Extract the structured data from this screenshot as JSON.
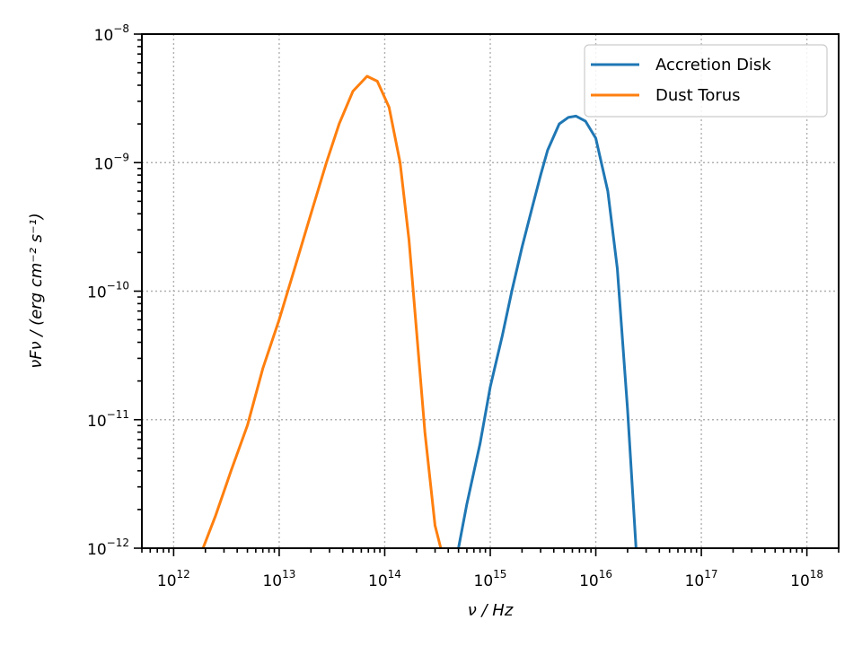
{
  "chart_data": {
    "type": "line",
    "title": "",
    "xlabel": "ν / Hz",
    "ylabel": "νFν / (erg cm⁻² s⁻¹)",
    "xscale": "log",
    "yscale": "log",
    "xlim": [
      500000000000.0,
      2e+18
    ],
    "ylim": [
      1e-12,
      1e-08
    ],
    "grid": true,
    "legend_position": "top-right",
    "x_tick_labels": [
      {
        "base": "10",
        "exp": "12",
        "value": 1000000000000.0
      },
      {
        "base": "10",
        "exp": "13",
        "value": 10000000000000.0
      },
      {
        "base": "10",
        "exp": "14",
        "value": 100000000000000.0
      },
      {
        "base": "10",
        "exp": "15",
        "value": 1000000000000000.0
      },
      {
        "base": "10",
        "exp": "16",
        "value": 1e+16
      },
      {
        "base": "10",
        "exp": "17",
        "value": 1e+17
      },
      {
        "base": "10",
        "exp": "18",
        "value": 1e+18
      }
    ],
    "y_tick_labels": [
      {
        "base": "10",
        "exp": "−12",
        "value": 1e-12
      },
      {
        "base": "10",
        "exp": "−11",
        "value": 1e-11
      },
      {
        "base": "10",
        "exp": "−10",
        "value": 1e-10
      },
      {
        "base": "10",
        "exp": "−9",
        "value": 1e-09
      },
      {
        "base": "10",
        "exp": "−8",
        "value": 1e-08
      }
    ],
    "series": [
      {
        "name": "Accretion Disk",
        "color": "#1f77b4",
        "x": [
          500000000000000.0,
          600000000000000.0,
          800000000000000.0,
          1000000000000000.0,
          1300000000000000.0,
          1600000000000000.0,
          2000000000000000.0,
          2500000000000000.0,
          3000000000000000.0,
          3500000000000000.0,
          4500000000000000.0,
          5500000000000000.0,
          6500000000000000.0,
          8000000000000000.0,
          1e+16,
          1.3e+16,
          1.6e+16,
          2e+16,
          2.5e+16,
          3e+16
        ],
        "y": [
          1e-12,
          2.2e-12,
          6.5e-12,
          1.8e-11,
          4.5e-11,
          1e-10,
          2.2e-10,
          4.5e-10,
          8e-10,
          1.25e-09,
          2e-09,
          2.25e-09,
          2.3e-09,
          2.1e-09,
          1.55e-09,
          6e-10,
          1.5e-10,
          1.2e-11,
          6e-13,
          1e-12
        ]
      },
      {
        "name": "Dust Torus",
        "color": "#ff7f0e",
        "x": [
          1900000000000.0,
          2500000000000.0,
          3500000000000.0,
          5000000000000.0,
          7000000000000.0,
          10000000000000.0,
          14000000000000.0,
          20000000000000.0,
          28000000000000.0,
          37000000000000.0,
          50000000000000.0,
          68000000000000.0,
          85000000000000.0,
          110000000000000.0,
          140000000000000.0,
          170000000000000.0,
          200000000000000.0,
          240000000000000.0,
          300000000000000.0,
          340000000000000.0
        ],
        "y": [
          1e-12,
          1.8e-12,
          4e-12,
          9e-12,
          2.5e-11,
          6e-11,
          1.5e-10,
          4e-10,
          1e-09,
          2e-09,
          3.6e-09,
          4.7e-09,
          4.3e-09,
          2.7e-09,
          1e-09,
          2.5e-10,
          5e-11,
          8e-12,
          1.5e-12,
          1e-12
        ]
      }
    ]
  }
}
